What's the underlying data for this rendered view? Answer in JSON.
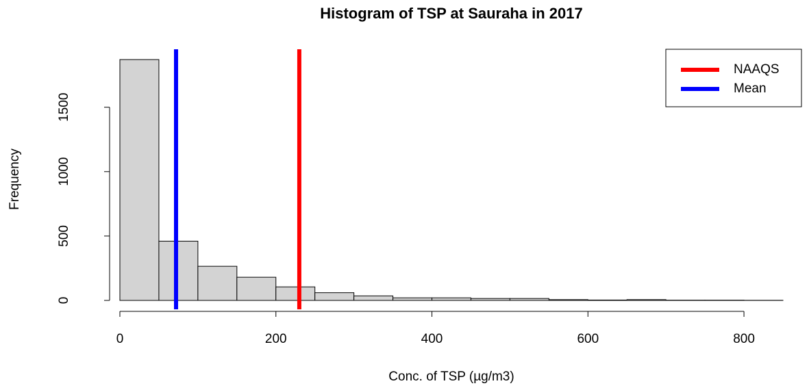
{
  "chart_data": {
    "type": "histogram",
    "title": "Histogram of TSP at Sauraha in 2017",
    "x_label": "Conc. of TSP (µg/m3)",
    "y_label": "Frequency",
    "bins": [
      0,
      50,
      100,
      150,
      200,
      250,
      300,
      350,
      400,
      450,
      500,
      550,
      600,
      650,
      700,
      750,
      800,
      850
    ],
    "counts": [
      1870,
      460,
      265,
      180,
      105,
      60,
      35,
      20,
      20,
      15,
      15,
      6,
      3,
      6,
      2,
      2,
      1
    ],
    "color": "#d3d3d3",
    "xlim": [
      0,
      850
    ],
    "xticks": [
      0,
      200,
      400,
      600,
      800
    ],
    "ylim": [
      0,
      1950
    ],
    "yticks": [
      0,
      500,
      1000,
      1500
    ],
    "vlines": [
      {
        "name": "NAAQS",
        "value": 230,
        "color": "#ff0000"
      },
      {
        "name": "Mean",
        "value": 72,
        "color": "#0000ff"
      }
    ],
    "legend": "top-right"
  }
}
